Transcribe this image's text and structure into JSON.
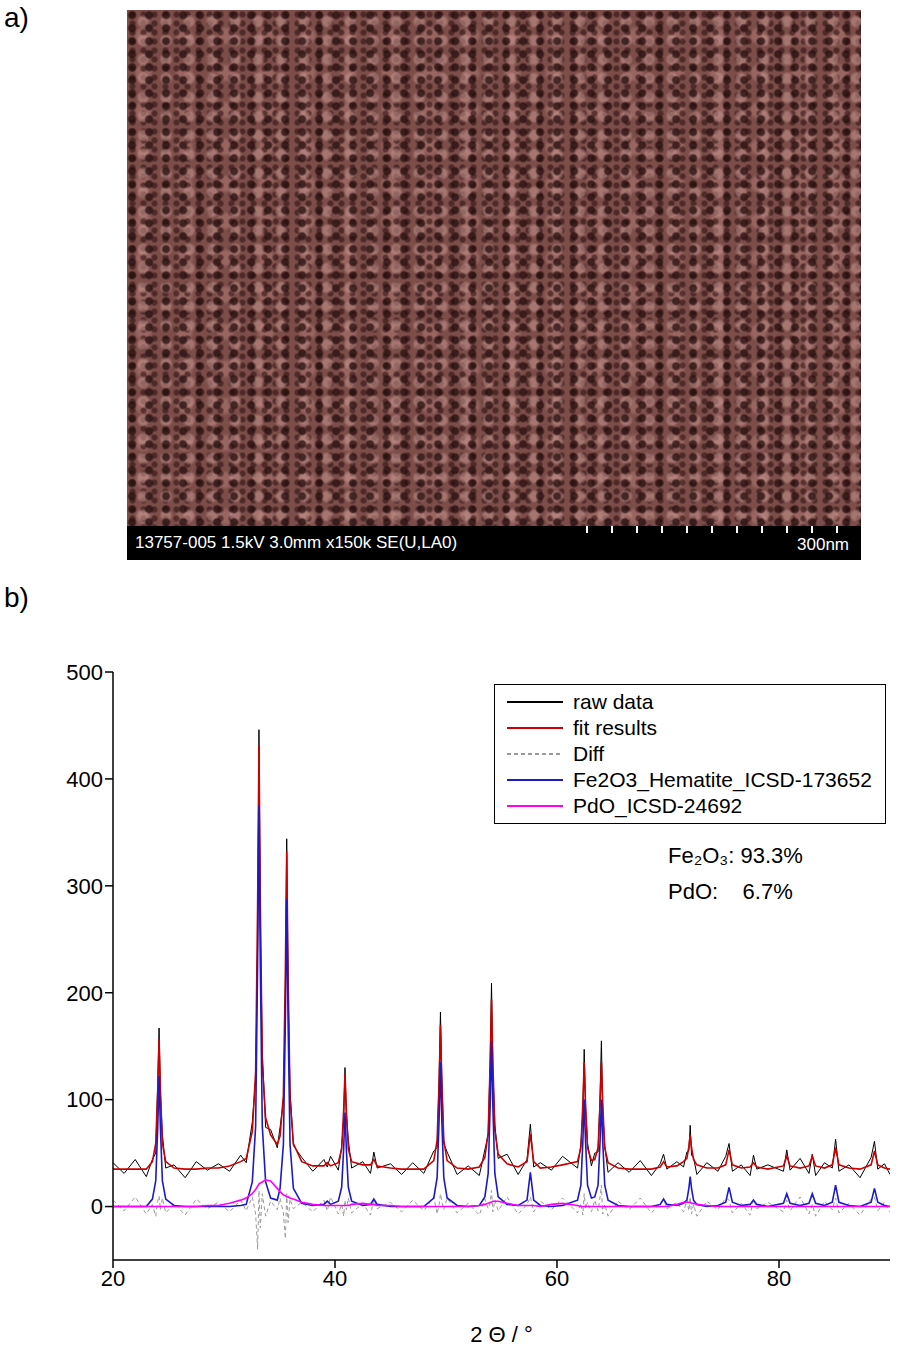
{
  "panel_labels": [
    "a)",
    "b)"
  ],
  "sem_image": {
    "caption": "13757-005 1.5kV 3.0mm x150k SE(U,LA0)",
    "scale_bar": "300nm"
  },
  "chart_data": {
    "type": "line",
    "x_label": "2 Θ / °",
    "xlim": [
      20,
      90
    ],
    "xticks": [
      20,
      40,
      60,
      80
    ],
    "ylim": [
      -50,
      500
    ],
    "yticks": [
      0,
      100,
      200,
      300,
      400,
      500
    ],
    "legend": "upper right",
    "annotations": [
      "Fe₂O₃: 93.3%",
      "PdO:    6.7%"
    ],
    "x": [
      20,
      21,
      22,
      23,
      23.55,
      23.85,
      24.03,
      24.15,
      24.27,
      24.45,
      24.75,
      25.5,
      26.5,
      27.5,
      28.5,
      29.5,
      30.5,
      31.5,
      32,
      32.55,
      32.85,
      33.03,
      33.15,
      33.27,
      33.45,
      33.75,
      34.2,
      34.8,
      35.05,
      35.35,
      35.53,
      35.65,
      35.77,
      35.95,
      36.25,
      37,
      38,
      39,
      39.3,
      39.6,
      40.3,
      40.6,
      40.78,
      40.9,
      41.02,
      41.2,
      41.5,
      42.5,
      43.2,
      43.5,
      43.8,
      45,
      46,
      47,
      48,
      48.9,
      49.2,
      49.38,
      49.5,
      49.62,
      49.8,
      50.1,
      51,
      52,
      53,
      53.5,
      53.8,
      53.98,
      54.1,
      54.22,
      54.4,
      54.7,
      55.5,
      56.5,
      57.3,
      57.6,
      57.9,
      58.5,
      59.5,
      60.5,
      61.85,
      62.15,
      62.33,
      62.45,
      62.57,
      62.75,
      63.1,
      63.4,
      63.7,
      63.88,
      64,
      64.12,
      64.3,
      64.6,
      65.5,
      66.5,
      67.5,
      68.5,
      69.3,
      69.6,
      69.9,
      70.8,
      71.4,
      71.7,
      71.88,
      72,
      72.12,
      72.3,
      72.6,
      73.5,
      74.5,
      75.2,
      75.5,
      75.8,
      76.6,
      77.4,
      77.7,
      78,
      79,
      80.4,
      80.7,
      81,
      81.9,
      82.7,
      83,
      83.3,
      84.1,
      84.8,
      85.1,
      85.4,
      86.3,
      87.3,
      88.3,
      88.6,
      88.9,
      89.5,
      90
    ],
    "series": [
      {
        "name": "raw data",
        "color": "#000000",
        "line_style": "solid",
        "values": [
          41,
          31,
          44,
          28,
          44,
          50,
          114,
          167,
          106,
          67,
          36,
          39,
          27,
          42,
          34,
          40,
          33,
          48,
          41,
          79,
          119,
          243,
          446,
          266,
          145,
          74,
          72,
          55,
          74,
          98,
          191,
          344,
          205,
          108,
          57,
          46,
          33,
          44,
          37,
          47,
          34,
          56,
          81,
          130,
          87,
          62,
          36,
          42,
          31,
          51,
          36,
          40,
          30,
          41,
          31,
          52,
          55,
          119,
          182,
          122,
          59,
          51,
          30,
          38,
          29,
          53,
          67,
          138,
          209,
          130,
          77,
          45,
          49,
          30,
          44,
          77,
          37,
          41,
          34,
          47,
          36,
          58,
          88,
          147,
          94,
          59,
          38,
          50,
          51,
          105,
          155,
          89,
          57,
          32,
          41,
          32,
          43,
          29,
          40,
          49,
          35,
          42,
          37,
          51,
          52,
          76,
          48,
          46,
          30,
          41,
          33,
          47,
          59,
          33,
          39,
          29,
          48,
          35,
          39,
          33,
          53,
          34,
          45,
          31,
          49,
          29,
          41,
          36,
          63,
          33,
          39,
          27,
          46,
          61,
          35,
          40,
          30
        ]
      },
      {
        "name": "fit results",
        "color": "#cc0000",
        "line_style": "solid",
        "values": [
          35,
          35,
          35,
          35,
          42,
          59,
          109,
          157,
          109,
          59,
          42,
          36,
          35,
          35,
          36,
          36,
          38,
          42,
          45,
          70,
          126,
          283,
          431,
          286,
          133,
          83,
          67,
          58,
          66,
          104,
          221,
          332,
          220,
          101,
          59,
          42,
          38,
          38,
          41,
          38,
          41,
          54,
          90,
          124,
          90,
          54,
          42,
          39,
          39,
          44,
          38,
          36,
          35,
          35,
          35,
          43,
          62,
          117,
          170,
          117,
          62,
          43,
          36,
          35,
          37,
          46,
          69,
          134,
          194,
          135,
          71,
          49,
          40,
          37,
          42,
          68,
          42,
          36,
          37,
          39,
          42,
          55,
          96,
          135,
          96,
          55,
          43,
          44,
          55,
          96,
          135,
          96,
          55,
          41,
          36,
          35,
          35,
          35,
          37,
          42,
          37,
          38,
          42,
          45,
          56,
          67,
          55,
          44,
          39,
          36,
          36,
          39,
          53,
          39,
          36,
          37,
          41,
          37,
          35,
          38,
          47,
          38,
          36,
          38,
          47,
          38,
          36,
          39,
          55,
          39,
          36,
          35,
          39,
          52,
          39,
          36,
          35
        ]
      },
      {
        "name": "Diff",
        "color": "#999999",
        "line_style": "dashed",
        "values": [
          6,
          -4,
          9,
          -7,
          2,
          -9,
          5,
          10,
          -3,
          8,
          -6,
          3,
          -8,
          7,
          -2,
          4,
          -5,
          6,
          -4,
          9,
          -7,
          -40,
          15,
          -20,
          12,
          -9,
          5,
          -3,
          8,
          -6,
          -30,
          12,
          -15,
          7,
          -2,
          4,
          -5,
          6,
          -4,
          9,
          -7,
          2,
          -9,
          6,
          -3,
          8,
          -6,
          3,
          -8,
          7,
          -2,
          4,
          -5,
          6,
          -4,
          9,
          -7,
          2,
          12,
          5,
          -3,
          8,
          -6,
          3,
          -8,
          7,
          -2,
          4,
          15,
          -5,
          6,
          -4,
          9,
          -7,
          2,
          9,
          -5,
          5,
          -3,
          8,
          -6,
          3,
          -8,
          12,
          -2,
          4,
          -5,
          6,
          -4,
          9,
          20,
          -7,
          2,
          -9,
          5,
          -3,
          8,
          -6,
          3,
          7,
          -2,
          4,
          -5,
          6,
          -4,
          9,
          -7,
          2,
          -9,
          5,
          -3,
          8,
          6,
          -6,
          3,
          -8,
          7,
          -2,
          4,
          -5,
          6,
          -4,
          9,
          -7,
          2,
          -9,
          5,
          -3,
          8,
          -6,
          3,
          -8,
          7,
          9,
          -4,
          4,
          -5
        ]
      },
      {
        "name": "Fe2O3_Hematite_ICSD-173652",
        "color": "#1a1acc",
        "line_style": "solid",
        "values": [
          0,
          0,
          0,
          0,
          7,
          24,
          74,
          122,
          74,
          24,
          7,
          1,
          0,
          0,
          0,
          0,
          0,
          1,
          2,
          23,
          75,
          229,
          375,
          229,
          75,
          23,
          8,
          6,
          17,
          58,
          176,
          288,
          176,
          58,
          17,
          3,
          1,
          2,
          5,
          2,
          5,
          18,
          54,
          88,
          54,
          18,
          5,
          1,
          2,
          7,
          2,
          0,
          0,
          0,
          0,
          8,
          27,
          82,
          135,
          82,
          27,
          8,
          1,
          0,
          1,
          9,
          31,
          95,
          155,
          95,
          31,
          9,
          2,
          1,
          6,
          32,
          6,
          1,
          0,
          1,
          6,
          20,
          61,
          100,
          61,
          20,
          8,
          9,
          20,
          61,
          100,
          61,
          20,
          6,
          1,
          0,
          0,
          0,
          2,
          7,
          2,
          1,
          3,
          6,
          17,
          28,
          17,
          6,
          2,
          0,
          1,
          4,
          18,
          4,
          1,
          2,
          6,
          2,
          0,
          3,
          12,
          3,
          1,
          3,
          12,
          3,
          1,
          4,
          20,
          4,
          1,
          0,
          4,
          17,
          4,
          1,
          0
        ]
      },
      {
        "name": "PdO_ICSD-24692",
        "color": "#ff00ff",
        "line_style": "solid",
        "values": [
          0,
          0,
          0,
          0,
          0,
          0,
          0,
          0,
          0,
          0,
          0,
          0,
          0,
          0,
          1,
          1,
          3,
          6,
          8,
          12,
          16,
          19,
          21,
          22,
          23,
          25,
          24,
          17,
          14,
          11,
          10,
          9,
          9,
          8,
          7,
          4,
          2,
          1,
          1,
          1,
          1,
          1,
          1,
          1,
          1,
          1,
          2,
          3,
          2,
          2,
          1,
          1,
          0,
          0,
          0,
          0,
          0,
          0,
          0,
          0,
          0,
          0,
          0,
          0,
          1,
          2,
          3,
          4,
          4,
          5,
          5,
          5,
          3,
          1,
          1,
          1,
          1,
          0,
          2,
          3,
          1,
          0,
          0,
          0,
          0,
          0,
          0,
          0,
          0,
          0,
          0,
          0,
          0,
          0,
          0,
          0,
          0,
          0,
          0,
          0,
          0,
          2,
          4,
          4,
          4,
          4,
          3,
          3,
          2,
          1,
          0,
          0,
          0,
          0,
          0,
          0,
          0,
          0,
          0,
          0,
          0,
          0,
          0,
          0,
          0,
          0,
          0,
          0,
          0,
          0,
          0,
          0,
          0,
          0,
          0,
          0,
          0
        ]
      }
    ]
  }
}
